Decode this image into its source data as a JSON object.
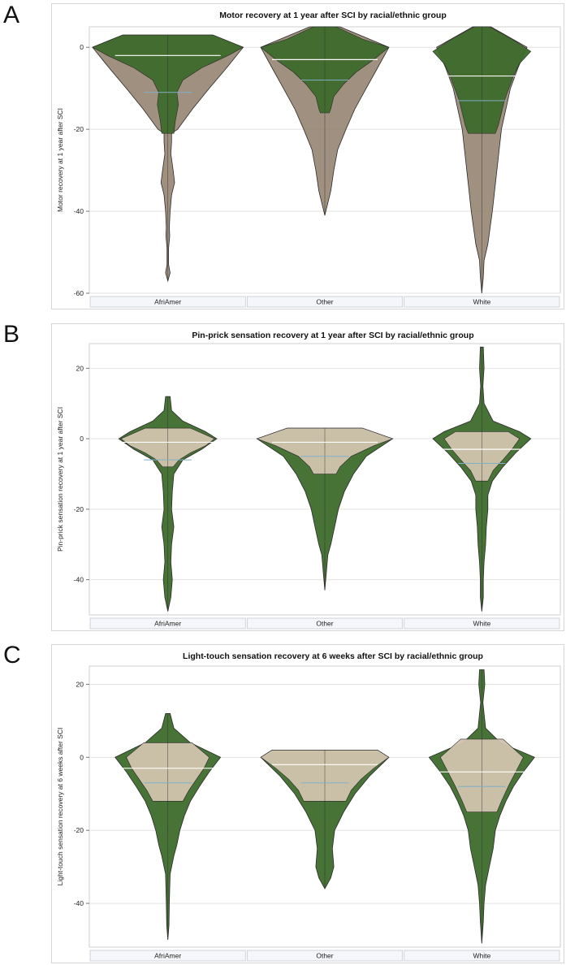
{
  "panels": [
    {
      "letter": "A",
      "chart_data": {
        "type": "violin",
        "title": "Motor recovery at 1 year after SCI by racial/ethnic group",
        "xlabel": "",
        "ylabel": "Motor recovery at 1 year after SCI",
        "categories": [
          "AfriAmer",
          "Other",
          "White"
        ],
        "ylim": [
          -60,
          5
        ],
        "yticks": [
          0,
          -20,
          -40,
          -60
        ],
        "grid": true,
        "colors": {
          "dark": "#3e6b2c",
          "light": "#d2c3ad",
          "mid": "#8f7d68",
          "median": "#ffffff",
          "mean": "#7fb0c8"
        },
        "groups": [
          {
            "name": "AfriAmer",
            "median": -2,
            "mean": -11,
            "min": -57,
            "max": 3,
            "inner": [
              [
                3,
                0.6
              ],
              [
                0,
                1.0
              ],
              [
                -2,
                0.8
              ],
              [
                -5,
                0.45
              ],
              [
                -8,
                0.2
              ],
              [
                -11,
                0.12
              ],
              [
                -14,
                0.14
              ],
              [
                -18,
                0.1
              ],
              [
                -21,
                0.08
              ]
            ],
            "outer": [
              [
                3,
                0.6
              ],
              [
                0,
                1.0
              ],
              [
                -5,
                0.78
              ],
              [
                -10,
                0.55
              ],
              [
                -15,
                0.33
              ],
              [
                -20,
                0.13
              ],
              [
                -21,
                0.05
              ],
              [
                -23,
                0.05
              ],
              [
                -26,
                0.04
              ],
              [
                -30,
                0.07
              ],
              [
                -33,
                0.09
              ],
              [
                -36,
                0.05
              ],
              [
                -40,
                0.03
              ],
              [
                -44,
                0.02
              ],
              [
                -46,
                0.025
              ],
              [
                -49,
                0.01
              ],
              [
                -53,
                0.01
              ],
              [
                -55,
                0.03
              ],
              [
                -57,
                0.0
              ]
            ]
          },
          {
            "name": "Other",
            "median": -3,
            "mean": -8,
            "min": -41,
            "max": 5,
            "inner": [
              [
                5,
                0.15
              ],
              [
                2,
                0.5
              ],
              [
                0,
                0.85
              ],
              [
                -3,
                0.65
              ],
              [
                -6,
                0.42
              ],
              [
                -9,
                0.25
              ],
              [
                -12,
                0.12
              ],
              [
                -15,
                0.08
              ],
              [
                -16,
                0.06
              ]
            ],
            "outer": [
              [
                5,
                0.2
              ],
              [
                0,
                0.85
              ],
              [
                -5,
                0.7
              ],
              [
                -10,
                0.55
              ],
              [
                -15,
                0.4
              ],
              [
                -20,
                0.28
              ],
              [
                -25,
                0.17
              ],
              [
                -30,
                0.12
              ],
              [
                -35,
                0.08
              ],
              [
                -38,
                0.04
              ],
              [
                -41,
                0.0
              ]
            ]
          },
          {
            "name": "White",
            "median": -7,
            "mean": -13,
            "min": -60,
            "max": 5,
            "inner": [
              [
                5,
                0.1
              ],
              [
                2,
                0.4
              ],
              [
                -1,
                0.65
              ],
              [
                -4,
                0.5
              ],
              [
                -7,
                0.42
              ],
              [
                -10,
                0.36
              ],
              [
                -13,
                0.3
              ],
              [
                -16,
                0.26
              ],
              [
                -19,
                0.22
              ],
              [
                -21,
                0.18
              ]
            ],
            "outer": [
              [
                5,
                0.12
              ],
              [
                0,
                0.6
              ],
              [
                -5,
                0.48
              ],
              [
                -10,
                0.38
              ],
              [
                -20,
                0.26
              ],
              [
                -30,
                0.2
              ],
              [
                -40,
                0.14
              ],
              [
                -48,
                0.08
              ],
              [
                -52,
                0.03
              ],
              [
                -56,
                0.02
              ],
              [
                -60,
                0.0
              ]
            ]
          }
        ]
      }
    },
    {
      "letter": "B",
      "chart_data": {
        "type": "violin",
        "title": "Pin-prick sensation recovery at 1 year after SCI by racial/ethnic group",
        "xlabel": "",
        "ylabel": "Pin-prick sensation recovery at 1 year after SCI",
        "categories": [
          "AfriAmer",
          "Other",
          "White"
        ],
        "ylim": [
          -50,
          27
        ],
        "yticks": [
          20,
          0,
          -20,
          -40
        ],
        "grid": true,
        "colors": {
          "dark": "#3e6b2c",
          "light": "#d2c3ad",
          "mid": "#8f7d68",
          "median": "#ffffff",
          "mean": "#7fb0c8"
        },
        "groups": [
          {
            "name": "AfriAmer",
            "median": -1,
            "mean": -6,
            "min": -49,
            "max": 12,
            "inner": [
              [
                3,
                0.3
              ],
              [
                0,
                0.62
              ],
              [
                -2,
                0.5
              ],
              [
                -4,
                0.3
              ],
              [
                -6,
                0.15
              ],
              [
                -8,
                0.07
              ]
            ],
            "outer": [
              [
                12,
                0.03
              ],
              [
                8,
                0.05
              ],
              [
                5,
                0.2
              ],
              [
                2,
                0.5
              ],
              [
                0,
                0.65
              ],
              [
                -3,
                0.45
              ],
              [
                -6,
                0.2
              ],
              [
                -10,
                0.08
              ],
              [
                -15,
                0.06
              ],
              [
                -20,
                0.05
              ],
              [
                -25,
                0.08
              ],
              [
                -30,
                0.05
              ],
              [
                -35,
                0.04
              ],
              [
                -40,
                0.06
              ],
              [
                -45,
                0.04
              ],
              [
                -49,
                0.0
              ]
            ]
          },
          {
            "name": "Other",
            "median": -1,
            "mean": -5,
            "min": -43,
            "max": 3,
            "inner": [
              [
                3,
                0.5
              ],
              [
                0,
                0.9
              ],
              [
                -2,
                0.65
              ],
              [
                -5,
                0.35
              ],
              [
                -8,
                0.2
              ],
              [
                -10,
                0.15
              ]
            ],
            "outer": [
              [
                3,
                0.5
              ],
              [
                0,
                0.9
              ],
              [
                -5,
                0.55
              ],
              [
                -10,
                0.38
              ],
              [
                -15,
                0.26
              ],
              [
                -20,
                0.18
              ],
              [
                -25,
                0.13
              ],
              [
                -30,
                0.08
              ],
              [
                -33,
                0.04
              ],
              [
                -38,
                0.02
              ],
              [
                -43,
                0.0
              ]
            ]
          },
          {
            "name": "White",
            "median": -3,
            "mean": -7,
            "min": -49,
            "max": 26,
            "inner": [
              [
                2,
                0.35
              ],
              [
                0,
                0.5
              ],
              [
                -3,
                0.4
              ],
              [
                -6,
                0.28
              ],
              [
                -9,
                0.15
              ],
              [
                -12,
                0.08
              ]
            ],
            "outer": [
              [
                26,
                0.02
              ],
              [
                20,
                0.03
              ],
              [
                15,
                0.015
              ],
              [
                10,
                0.03
              ],
              [
                5,
                0.15
              ],
              [
                2,
                0.5
              ],
              [
                0,
                0.65
              ],
              [
                -4,
                0.45
              ],
              [
                -8,
                0.28
              ],
              [
                -12,
                0.14
              ],
              [
                -16,
                0.08
              ],
              [
                -20,
                0.08
              ],
              [
                -25,
                0.06
              ],
              [
                -30,
                0.05
              ],
              [
                -35,
                0.03
              ],
              [
                -40,
                0.02
              ],
              [
                -45,
                0.02
              ],
              [
                -49,
                0.0
              ]
            ]
          }
        ]
      }
    },
    {
      "letter": "C",
      "chart_data": {
        "type": "violin",
        "title": "Light-touch sensation recovery at 6 weeks after SCI by racial/ethnic group",
        "xlabel": "",
        "ylabel": "Light-touch sensation recovery at 6 weeks after SCI",
        "categories": [
          "AfriAmer",
          "Other",
          "White"
        ],
        "ylim": [
          -52,
          25
        ],
        "yticks": [
          20,
          0,
          -20,
          -40
        ],
        "grid": true,
        "colors": {
          "dark": "#3e6b2c",
          "light": "#d2c3ad",
          "mid": "#8f7d68",
          "median": "#ffffff",
          "mean": "#7fb0c8"
        },
        "groups": [
          {
            "name": "AfriAmer",
            "median": -3,
            "mean": -7,
            "min": -50,
            "max": 12,
            "inner": [
              [
                4,
                0.32
              ],
              [
                0,
                0.55
              ],
              [
                -3,
                0.48
              ],
              [
                -6,
                0.38
              ],
              [
                -9,
                0.28
              ],
              [
                -12,
                0.2
              ]
            ],
            "outer": [
              [
                12,
                0.03
              ],
              [
                8,
                0.08
              ],
              [
                4,
                0.3
              ],
              [
                0,
                0.7
              ],
              [
                -4,
                0.55
              ],
              [
                -8,
                0.42
              ],
              [
                -12,
                0.3
              ],
              [
                -16,
                0.22
              ],
              [
                -20,
                0.16
              ],
              [
                -24,
                0.12
              ],
              [
                -27,
                0.08
              ],
              [
                -32,
                0.03
              ],
              [
                -40,
                0.02
              ],
              [
                -46,
                0.015
              ],
              [
                -50,
                0.0
              ]
            ]
          },
          {
            "name": "Other",
            "median": -2,
            "mean": -7,
            "min": -36,
            "max": 2,
            "inner": [
              [
                2,
                0.7
              ],
              [
                0,
                0.85
              ],
              [
                -3,
                0.65
              ],
              [
                -6,
                0.48
              ],
              [
                -9,
                0.35
              ],
              [
                -12,
                0.28
              ]
            ],
            "outer": [
              [
                2,
                0.7
              ],
              [
                0,
                0.85
              ],
              [
                -5,
                0.6
              ],
              [
                -10,
                0.4
              ],
              [
                -15,
                0.25
              ],
              [
                -20,
                0.13
              ],
              [
                -25,
                0.1
              ],
              [
                -30,
                0.12
              ],
              [
                -33,
                0.08
              ],
              [
                -36,
                0.0
              ]
            ]
          },
          {
            "name": "White",
            "median": -4,
            "mean": -8,
            "min": -51,
            "max": 24,
            "inner": [
              [
                5,
                0.28
              ],
              [
                0,
                0.55
              ],
              [
                -4,
                0.45
              ],
              [
                -8,
                0.35
              ],
              [
                -12,
                0.26
              ],
              [
                -15,
                0.2
              ]
            ],
            "outer": [
              [
                24,
                0.03
              ],
              [
                20,
                0.04
              ],
              [
                15,
                0.015
              ],
              [
                8,
                0.05
              ],
              [
                4,
                0.25
              ],
              [
                0,
                0.7
              ],
              [
                -4,
                0.55
              ],
              [
                -8,
                0.42
              ],
              [
                -12,
                0.32
              ],
              [
                -16,
                0.24
              ],
              [
                -20,
                0.18
              ],
              [
                -25,
                0.15
              ],
              [
                -30,
                0.1
              ],
              [
                -35,
                0.05
              ],
              [
                -40,
                0.03
              ],
              [
                -45,
                0.02
              ],
              [
                -51,
                0.0
              ]
            ]
          }
        ]
      }
    }
  ]
}
